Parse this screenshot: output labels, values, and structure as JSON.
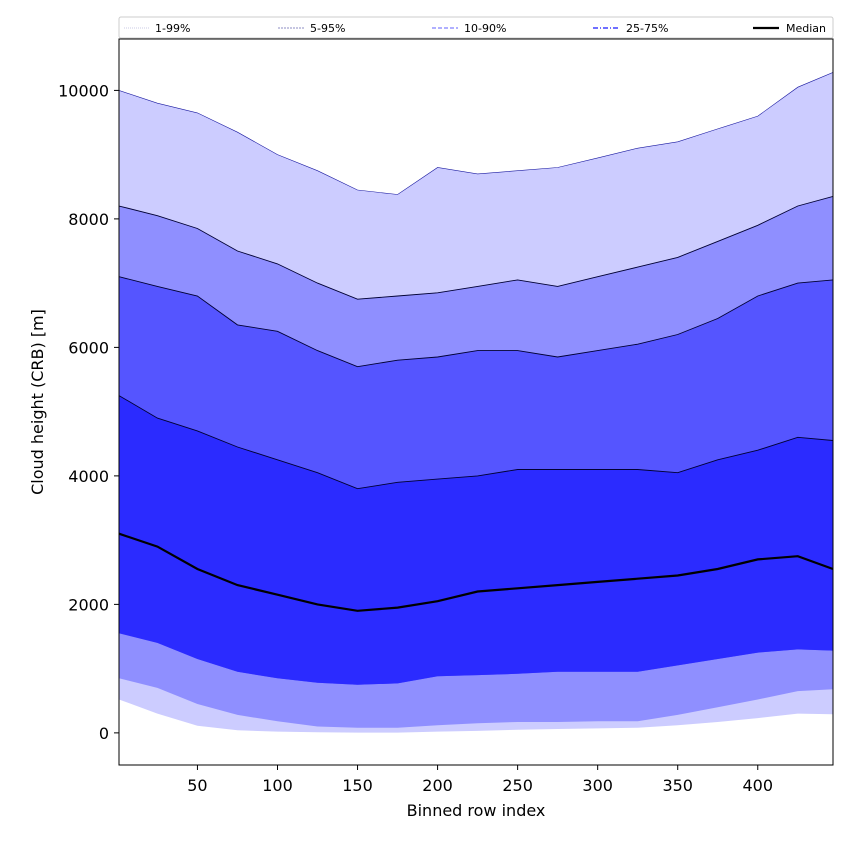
{
  "chart_data": {
    "type": "area",
    "xlabel": "Binned row index",
    "ylabel": "Cloud height (CRB) [m]",
    "xlim": [
      1,
      447
    ],
    "ylim": [
      -500,
      10800
    ],
    "xticks": [
      50,
      100,
      150,
      200,
      250,
      300,
      350,
      400
    ],
    "yticks": [
      0,
      2000,
      4000,
      6000,
      8000,
      10000
    ],
    "grid": false,
    "legend_position": "top",
    "x": [
      1,
      25,
      50,
      75,
      100,
      125,
      150,
      175,
      200,
      225,
      250,
      275,
      300,
      325,
      350,
      375,
      400,
      425,
      447
    ],
    "bands": [
      {
        "name": "1-99%",
        "color": "#ccccff",
        "lower": [
          520,
          300,
          110,
          40,
          20,
          10,
          5,
          5,
          20,
          30,
          50,
          60,
          70,
          80,
          120,
          170,
          230,
          300,
          290
        ],
        "upper": [
          10000,
          9800,
          9650,
          9350,
          9000,
          8750,
          8450,
          8380,
          8800,
          8700,
          8750,
          8800,
          8950,
          9100,
          9200,
          9400,
          9600,
          10050,
          10280
        ]
      },
      {
        "name": "5-95%",
        "color": "#8f8fff",
        "lower": [
          850,
          700,
          450,
          280,
          180,
          100,
          80,
          80,
          120,
          150,
          170,
          170,
          180,
          180,
          280,
          400,
          520,
          650,
          680
        ],
        "upper": [
          8200,
          8050,
          7850,
          7500,
          7300,
          7000,
          6750,
          6800,
          6850,
          6950,
          7050,
          6950,
          7100,
          7250,
          7400,
          7650,
          7900,
          8200,
          8350
        ]
      },
      {
        "name": "10-90%",
        "color": "#5555ff",
        "lower": [
          1550,
          1400,
          1150,
          950,
          850,
          780,
          750,
          770,
          880,
          900,
          920,
          950,
          950,
          950,
          1050,
          1150,
          1250,
          1300,
          1280
        ],
        "upper": [
          7100,
          6950,
          6800,
          6350,
          6250,
          5950,
          5700,
          5800,
          5850,
          5950,
          5950,
          5850,
          5950,
          6050,
          6200,
          6450,
          6800,
          7000,
          7050
        ]
      },
      {
        "name": "25-75%",
        "color": "#2b2bff",
        "lower": null,
        "upper": [
          5250,
          4900,
          4700,
          4450,
          4250,
          4050,
          3800,
          3900,
          3950,
          4000,
          4100,
          4100,
          4100,
          4100,
          4050,
          4250,
          4400,
          4600,
          4550
        ]
      }
    ],
    "series": [
      {
        "name": "Median",
        "color": "#000000",
        "values": [
          3100,
          2900,
          2550,
          2300,
          2150,
          2000,
          1900,
          1950,
          2050,
          2200,
          2250,
          2300,
          2350,
          2400,
          2450,
          2550,
          2700,
          2750,
          2550
        ]
      }
    ],
    "legend": [
      {
        "label": "1-99%",
        "style": "dotted-faint"
      },
      {
        "label": "5-95%",
        "style": "thin"
      },
      {
        "label": "10-90%",
        "style": "dashed"
      },
      {
        "label": "25-75%",
        "style": "dashdot"
      },
      {
        "label": "Median",
        "style": "solid-thick"
      }
    ]
  }
}
